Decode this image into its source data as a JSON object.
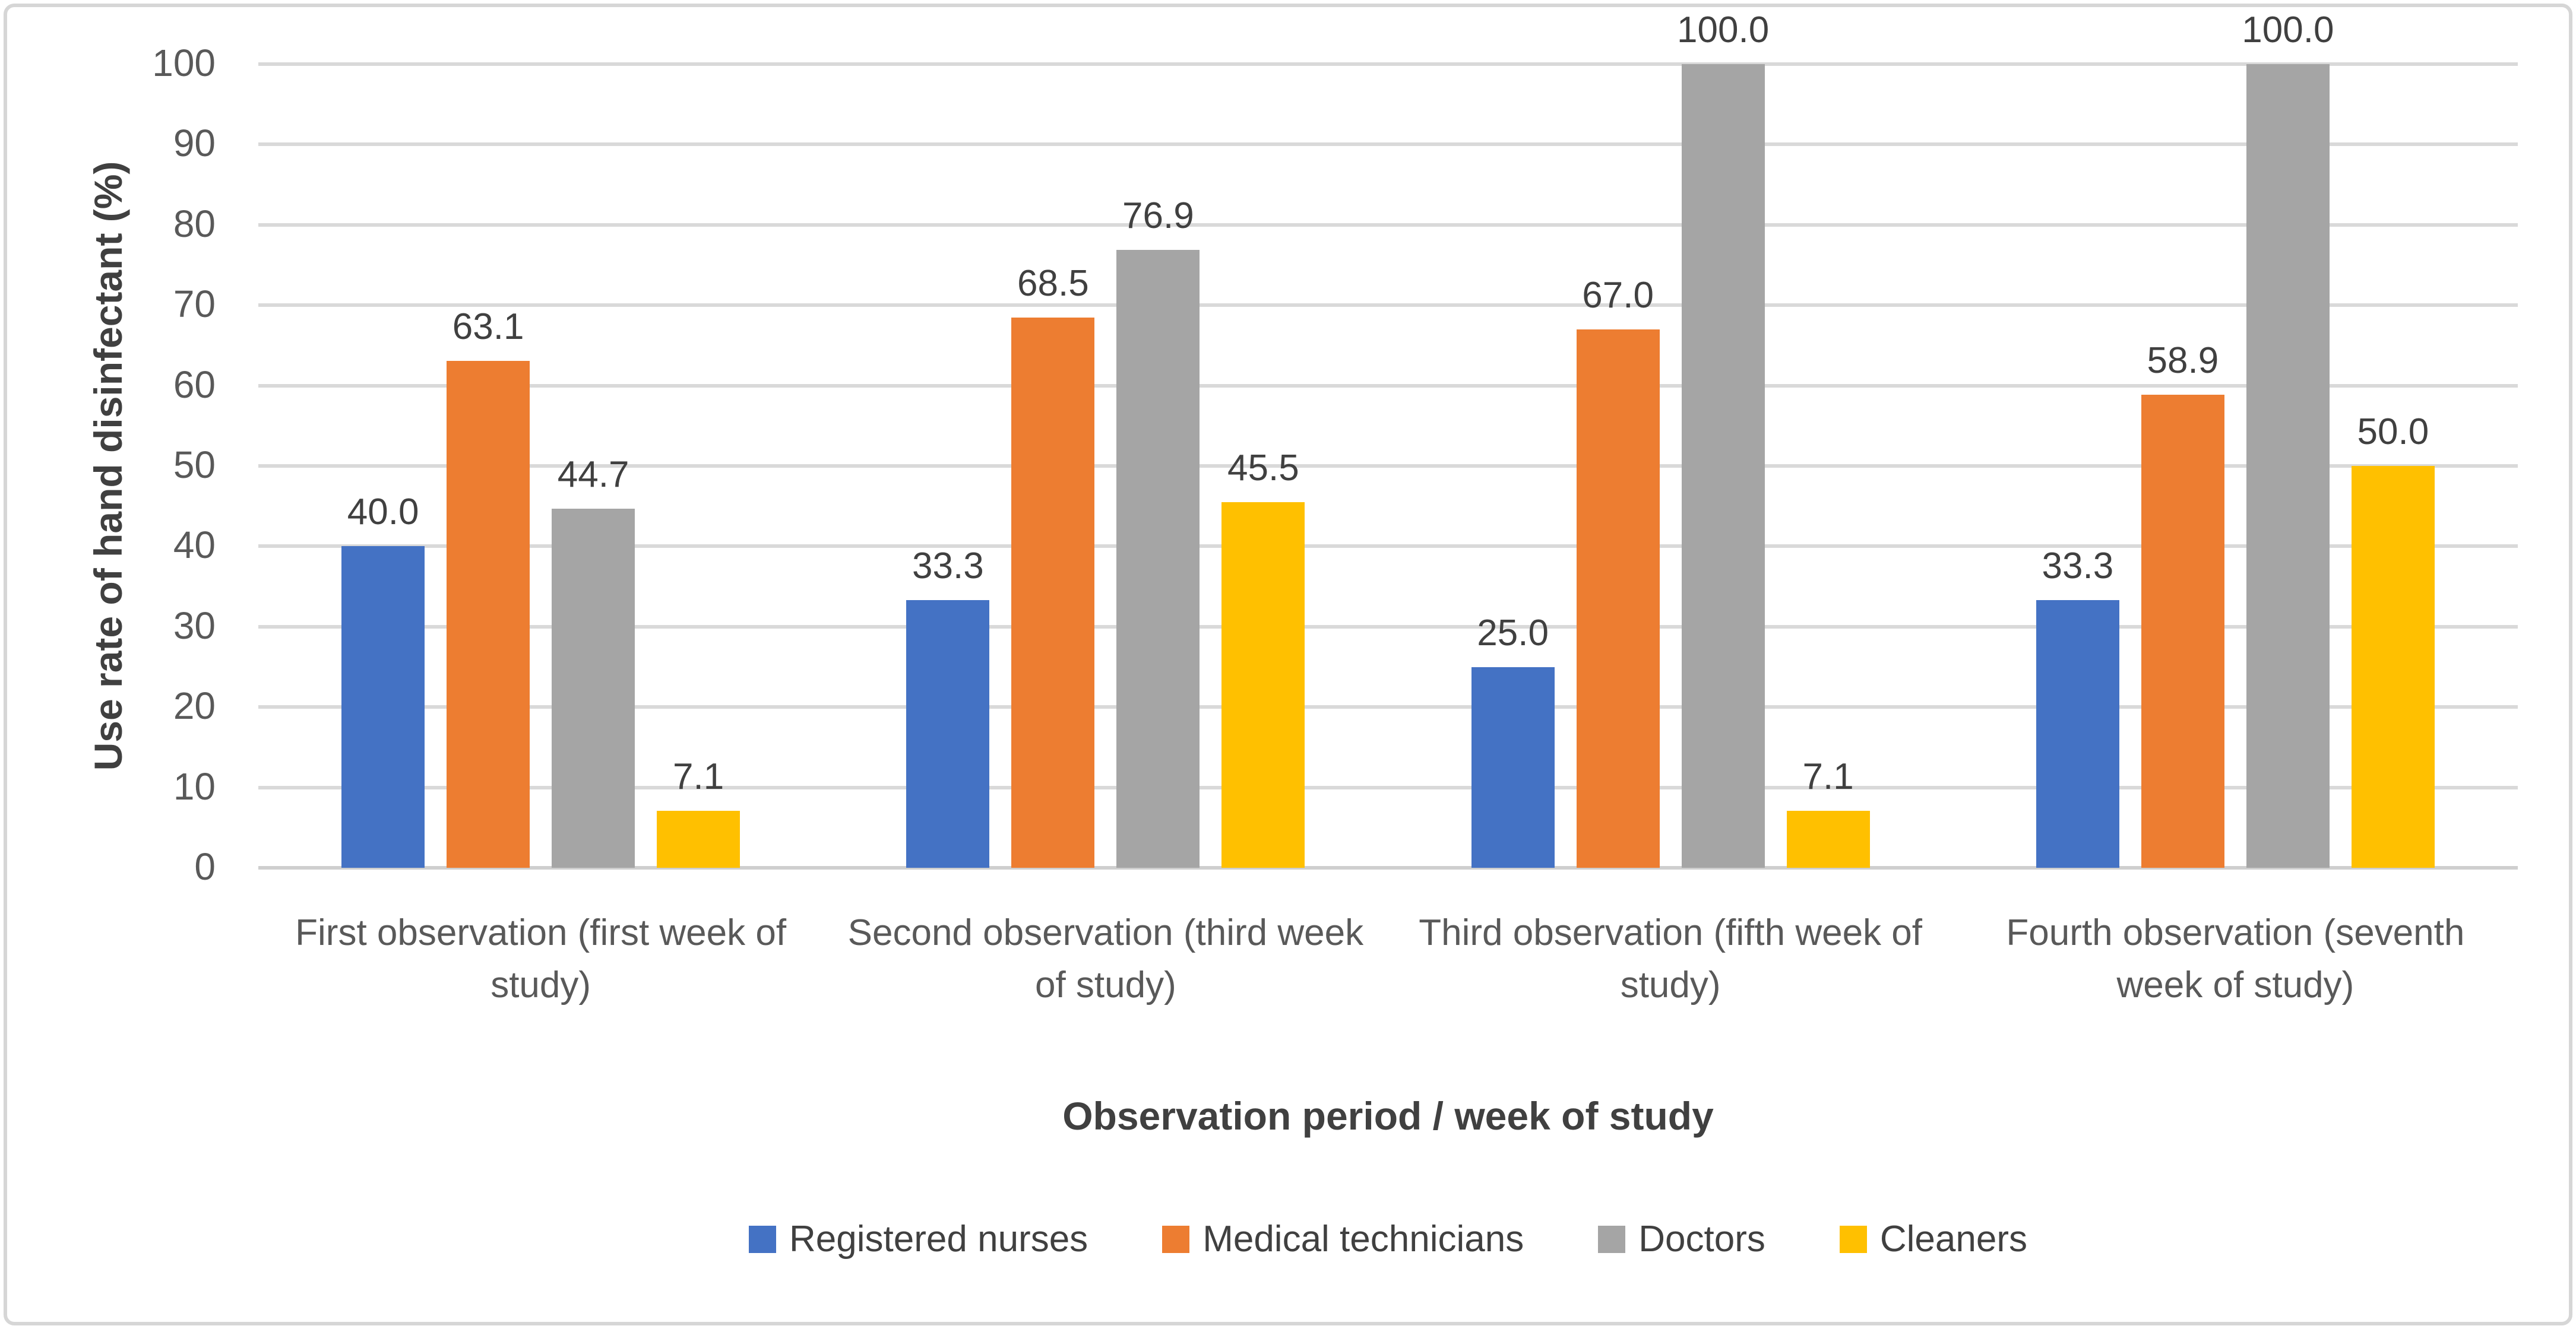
{
  "chart_data": {
    "type": "bar",
    "title": "",
    "xlabel": "Observation period / week of study",
    "ylabel": "Use rate of hand disinfectant (%)",
    "ylim": [
      0,
      100
    ],
    "ytick_step": 10,
    "yticks": [
      0,
      10,
      20,
      30,
      40,
      50,
      60,
      70,
      80,
      90,
      100
    ],
    "grid": "horizontal",
    "legend_position": "bottom",
    "categories": [
      "First observation (first week of study)",
      "Second observation (third week of study)",
      "Third observation (fifth week of study)",
      "Fourth observation (seventh week of study)"
    ],
    "series": [
      {
        "name": "Registered nurses",
        "color": "#4472C4",
        "values": [
          40.0,
          33.3,
          25.0,
          33.3
        ],
        "labels": [
          "40.0",
          "33.3",
          "25.0",
          "33.3"
        ]
      },
      {
        "name": "Medical technicians",
        "color": "#ED7D31",
        "values": [
          63.1,
          68.5,
          67.0,
          58.9
        ],
        "labels": [
          "63.1",
          "68.5",
          "67.0",
          "58.9"
        ]
      },
      {
        "name": "Doctors",
        "color": "#A5A5A5",
        "values": [
          44.7,
          76.9,
          100.0,
          100.0
        ],
        "labels": [
          "44.7",
          "76.9",
          "100.0",
          "100.0"
        ]
      },
      {
        "name": "Cleaners",
        "color": "#FFC000",
        "values": [
          7.1,
          45.5,
          7.1,
          50.0
        ],
        "labels": [
          "7.1",
          "45.5",
          "7.1",
          "50.0"
        ]
      }
    ],
    "colors": {
      "gridline": "#D9D9D9",
      "axis_line": "#CFCFCF",
      "tick_label": "#595959",
      "category_label": "#595959",
      "data_label": "#404040",
      "axis_title": "#404040",
      "chart_border": "#D6D6D6",
      "background": "#FFFFFF"
    }
  }
}
